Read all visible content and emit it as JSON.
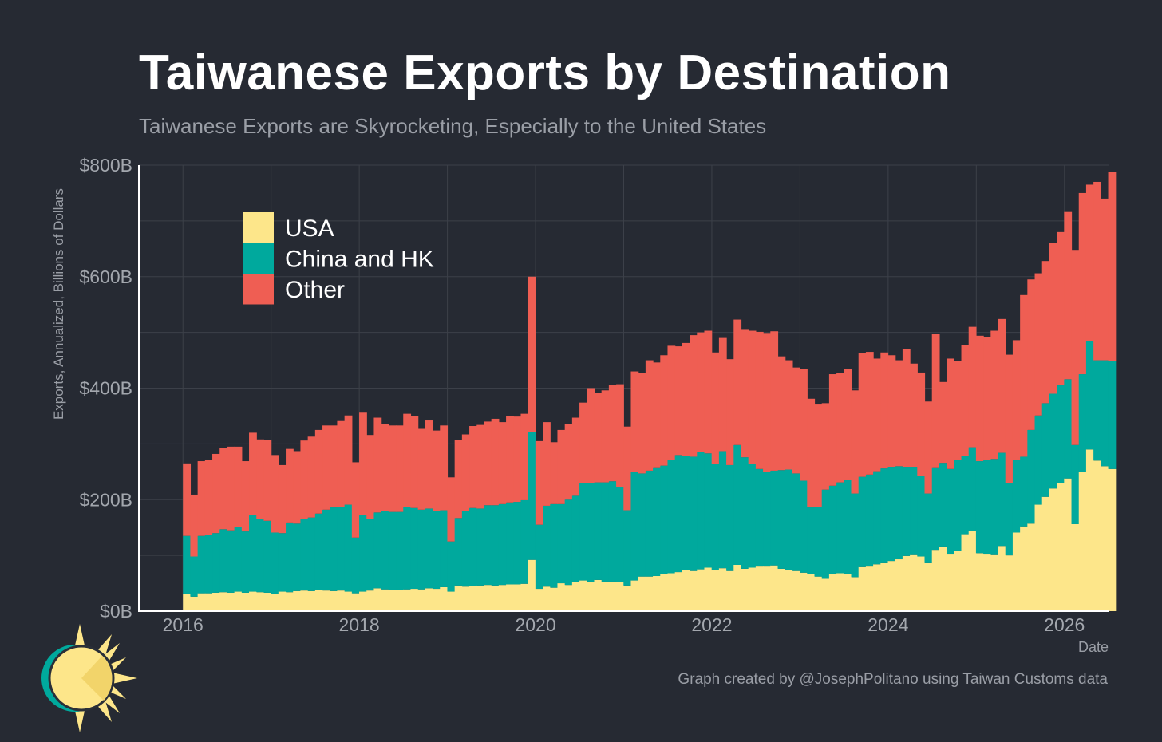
{
  "header": {
    "title": "Taiwanese Exports by Destination",
    "subtitle": "Taiwanese Exports are Skyrocketing, Especially to the United States"
  },
  "footer": {
    "caption": "Graph created by @JosephPolitano using Taiwan Customs data"
  },
  "colors": {
    "background": "#262a33",
    "grid": "#3c4049",
    "axis": "#ffffff",
    "tick_text": "#a3a7ae",
    "usa": "#fde68a",
    "china_hk": "#00a99d",
    "other": "#ef5e53"
  },
  "chart_data": {
    "type": "area",
    "stacked": true,
    "title": "Taiwanese Exports by Destination",
    "subtitle": "Taiwanese Exports are Skyrocketing, Especially to the United States",
    "xlabel": "Date",
    "ylabel": "Exports, Annualized, Billions of Dollars",
    "xlim": [
      2015.5,
      2026.5
    ],
    "ylim": [
      0,
      800
    ],
    "x_ticks": [
      2016,
      2018,
      2020,
      2022,
      2024,
      2026
    ],
    "x_tick_labels": [
      "2016",
      "2018",
      "2020",
      "2022",
      "2024",
      "2026"
    ],
    "y_ticks": [
      0,
      200,
      400,
      600,
      800
    ],
    "y_tick_labels": [
      "$0B",
      "$200B",
      "$400B",
      "$600B",
      "$800B"
    ],
    "legend": {
      "placement": "top-left"
    },
    "x_start": 2016.0,
    "x_step": 0.0833,
    "series": [
      {
        "name": "USA",
        "color": "#fde68a",
        "values": [
          31,
          26,
          32,
          32,
          33,
          34,
          33,
          35,
          33,
          35,
          34,
          33,
          31,
          35,
          34,
          36,
          37,
          36,
          38,
          37,
          36,
          37,
          35,
          32,
          35,
          37,
          41,
          39,
          38,
          38,
          39,
          40,
          39,
          41,
          40,
          43,
          35,
          46,
          44,
          45,
          46,
          47,
          46,
          47,
          48,
          48,
          49,
          92,
          40,
          44,
          42,
          50,
          47,
          52,
          55,
          53,
          56,
          53,
          53,
          52,
          46,
          55,
          62,
          62,
          63,
          66,
          68,
          70,
          73,
          72,
          75,
          78,
          74,
          77,
          72,
          83,
          76,
          78,
          80,
          80,
          82,
          76,
          74,
          72,
          69,
          66,
          62,
          58,
          67,
          68,
          67,
          61,
          79,
          80,
          84,
          86,
          90,
          93,
          99,
          102,
          98,
          86,
          110,
          116,
          103,
          108,
          138,
          144,
          104,
          103,
          102,
          117,
          100,
          141,
          152,
          157,
          191,
          205,
          220,
          230,
          238,
          156,
          250,
          290,
          270,
          260,
          255
        ]
      },
      {
        "name": "China and HK",
        "color": "#00a99d",
        "values": [
          104,
          72,
          103,
          104,
          107,
          113,
          112,
          116,
          110,
          138,
          132,
          129,
          110,
          105,
          125,
          121,
          129,
          132,
          137,
          145,
          150,
          150,
          156,
          100,
          138,
          129,
          136,
          140,
          140,
          140,
          148,
          145,
          143,
          143,
          140,
          138,
          90,
          121,
          135,
          140,
          138,
          143,
          144,
          145,
          147,
          148,
          150,
          230,
          115,
          145,
          150,
          142,
          153,
          155,
          174,
          177,
          175,
          178,
          180,
          170,
          135,
          195,
          185,
          190,
          195,
          195,
          203,
          210,
          205,
          205,
          210,
          205,
          190,
          210,
          190,
          215,
          200,
          186,
          175,
          170,
          170,
          177,
          180,
          175,
          165,
          120,
          125,
          160,
          158,
          163,
          168,
          150,
          162,
          165,
          167,
          170,
          169,
          167,
          160,
          157,
          145,
          125,
          148,
          150,
          152,
          163,
          140,
          150,
          165,
          168,
          171,
          167,
          130,
          130,
          125,
          168,
          160,
          168,
          170,
          175,
          178,
          142,
          175,
          195,
          180,
          190,
          193
        ]
      },
      {
        "name": "Other",
        "color": "#ef5e53",
        "values": [
          130,
          111,
          134,
          135,
          142,
          145,
          150,
          144,
          126,
          147,
          142,
          145,
          139,
          122,
          132,
          130,
          140,
          145,
          150,
          151,
          147,
          154,
          160,
          135,
          183,
          150,
          170,
          157,
          155,
          155,
          167,
          165,
          145,
          158,
          144,
          152,
          115,
          140,
          138,
          147,
          150,
          150,
          155,
          147,
          155,
          153,
          155,
          278,
          150,
          150,
          111,
          133,
          135,
          140,
          145,
          170,
          160,
          165,
          172,
          185,
          150,
          180,
          180,
          198,
          188,
          198,
          205,
          195,
          203,
          218,
          215,
          220,
          200,
          203,
          190,
          225,
          230,
          239,
          246,
          249,
          250,
          204,
          196,
          190,
          200,
          195,
          185,
          155,
          200,
          196,
          200,
          185,
          222,
          220,
          202,
          208,
          200,
          190,
          211,
          185,
          185,
          165,
          240,
          145,
          198,
          177,
          200,
          216,
          225,
          220,
          230,
          240,
          230,
          215,
          290,
          270,
          255,
          255,
          270,
          275,
          300,
          350,
          325,
          280,
          320,
          290,
          340
        ]
      }
    ]
  }
}
